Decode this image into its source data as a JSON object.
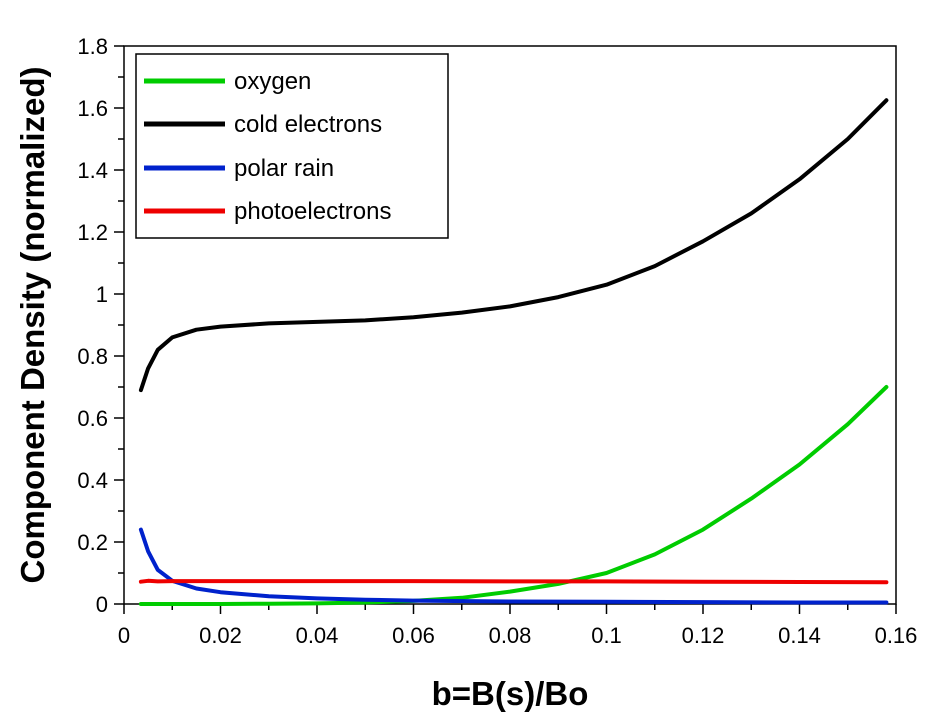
{
  "chart_data": {
    "type": "line",
    "title": "",
    "xlabel": "b=B(s)/Bo",
    "ylabel": "Component Density (normalized)",
    "xlim": [
      0,
      0.16
    ],
    "ylim": [
      0,
      1.8
    ],
    "xticks": [
      0,
      0.02,
      0.04,
      0.06,
      0.08,
      0.1,
      0.12,
      0.14,
      0.16
    ],
    "xtick_labels": [
      "0",
      "0.02",
      "0.04",
      "0.06",
      "0.08",
      "0.1",
      "0.12",
      "0.14",
      "0.16"
    ],
    "yticks": [
      0,
      0.2,
      0.4,
      0.6,
      0.8,
      1,
      1.2,
      1.4,
      1.6,
      1.8
    ],
    "ytick_labels": [
      "0",
      "0.2",
      "0.4",
      "0.6",
      "0.8",
      "1",
      "1.2",
      "1.4",
      "1.6",
      "1.8"
    ],
    "grid": false,
    "legend_position": "top-left",
    "series": [
      {
        "name": "oxygen",
        "color": "#00cc00",
        "x": [
          0.0035,
          0.01,
          0.02,
          0.03,
          0.04,
          0.05,
          0.06,
          0.07,
          0.08,
          0.09,
          0.1,
          0.11,
          0.12,
          0.13,
          0.14,
          0.15,
          0.158
        ],
        "y": [
          0.0,
          0.0,
          0.0,
          0.001,
          0.002,
          0.005,
          0.01,
          0.02,
          0.04,
          0.065,
          0.1,
          0.16,
          0.24,
          0.34,
          0.45,
          0.58,
          0.7
        ]
      },
      {
        "name": "cold electrons",
        "color": "#000000",
        "x": [
          0.0035,
          0.005,
          0.007,
          0.01,
          0.015,
          0.02,
          0.03,
          0.04,
          0.05,
          0.06,
          0.07,
          0.08,
          0.09,
          0.1,
          0.11,
          0.12,
          0.13,
          0.14,
          0.15,
          0.158
        ],
        "y": [
          0.69,
          0.76,
          0.82,
          0.86,
          0.885,
          0.895,
          0.905,
          0.91,
          0.915,
          0.925,
          0.94,
          0.96,
          0.99,
          1.03,
          1.09,
          1.17,
          1.26,
          1.37,
          1.5,
          1.625
        ]
      },
      {
        "name": "polar rain",
        "color": "#0022cc",
        "x": [
          0.0035,
          0.005,
          0.007,
          0.01,
          0.015,
          0.02,
          0.03,
          0.04,
          0.05,
          0.06,
          0.08,
          0.1,
          0.12,
          0.14,
          0.158
        ],
        "y": [
          0.24,
          0.17,
          0.11,
          0.075,
          0.05,
          0.038,
          0.025,
          0.018,
          0.014,
          0.011,
          0.008,
          0.007,
          0.006,
          0.005,
          0.005
        ]
      },
      {
        "name": "photoelectrons",
        "color": "#ee0000",
        "x": [
          0.0035,
          0.005,
          0.007,
          0.01,
          0.02,
          0.04,
          0.06,
          0.08,
          0.1,
          0.12,
          0.14,
          0.158
        ],
        "y": [
          0.072,
          0.075,
          0.073,
          0.074,
          0.074,
          0.074,
          0.074,
          0.073,
          0.073,
          0.072,
          0.071,
          0.07
        ]
      }
    ]
  }
}
